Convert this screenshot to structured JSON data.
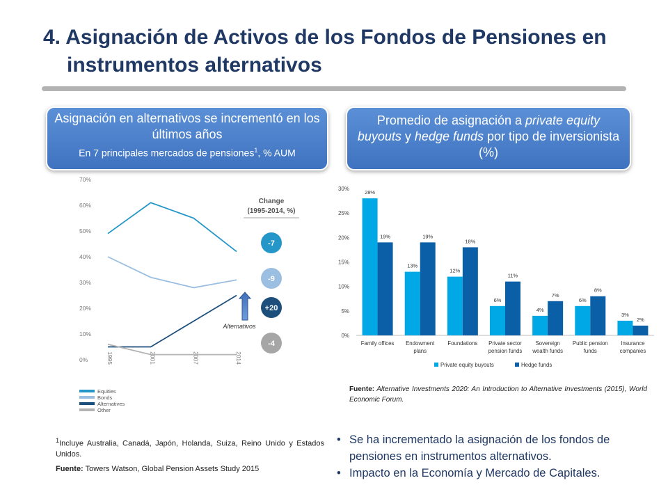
{
  "slide": {
    "title_line1": "4. Asignación de Activos de los Fondos de Pensiones en",
    "title_line2": "instrumentos alternativos"
  },
  "box_left": {
    "heading": "Asignación en alternativos se incrementó en los últimos años",
    "sub_text": "En 7 principales mercados de pensiones",
    "sub_sup": "1",
    "sub_suffix": ", % AUM"
  },
  "box_right": {
    "heading_part1": "Promedio de asignación a ",
    "heading_em1": "private equity buyouts",
    "heading_part2": " y ",
    "heading_em2": "hedge funds",
    "heading_part3": " por tipo de inversionista (%)"
  },
  "chart_data": [
    {
      "type": "line",
      "x": [
        "1995",
        "2001",
        "2007",
        "2014"
      ],
      "ylim": [
        0,
        70
      ],
      "ytick_labels": [
        "0%",
        "10%",
        "20%",
        "30%",
        "40%",
        "50%",
        "60%",
        "70%"
      ],
      "series": [
        {
          "name": "Equities",
          "values": [
            49,
            61,
            55,
            42
          ],
          "color": "#2596c8"
        },
        {
          "name": "Bonds",
          "values": [
            40,
            32,
            28,
            31
          ],
          "color": "#9bbfe0"
        },
        {
          "name": "Alternatives",
          "values": [
            5,
            5,
            15,
            25
          ],
          "color": "#1c4f7c"
        },
        {
          "name": "Other",
          "values": [
            6,
            2,
            2,
            2
          ],
          "color": "#b3b3b3"
        }
      ],
      "change_title_line1": "Change",
      "change_title_line2": "(1995-2014, %)",
      "change_badges": [
        {
          "label": "-7",
          "color": "#2596c8"
        },
        {
          "label": "-9",
          "color": "#9bbfe0"
        },
        {
          "label": "+20",
          "color": "#1c4f7c"
        },
        {
          "label": "-4",
          "color": "#a6a6a6"
        }
      ],
      "annotation": "Alternativos",
      "legend_position": "bottom-left",
      "grid": false
    },
    {
      "type": "bar",
      "categories": [
        [
          "Family offices"
        ],
        [
          "Endowment",
          "plans"
        ],
        [
          "Foundations"
        ],
        [
          "Private sector",
          "pension funds"
        ],
        [
          "Sovereign",
          "wealth funds"
        ],
        [
          "Public pension",
          "funds"
        ],
        [
          "Insurance",
          "companies"
        ]
      ],
      "series": [
        {
          "name": "Private equity buyouts",
          "values": [
            28,
            13,
            12,
            6,
            4,
            6,
            3
          ],
          "color": "#00a9e6"
        },
        {
          "name": "Hedge funds",
          "values": [
            19,
            19,
            18,
            11,
            7,
            8,
            2
          ],
          "color": "#0a5fa6"
        }
      ],
      "ylim": [
        0,
        30
      ],
      "ytick_labels": [
        "0%",
        "5%",
        "10%",
        "15%",
        "20%",
        "25%",
        "30%"
      ],
      "data_label_suffix": "%",
      "legend_position": "bottom",
      "grid": false
    }
  ],
  "source_right": {
    "label": "Fuente:",
    "text": " Alternative Investments 2020: An Introduction to Alternative Investments (2015), World Economic Forum."
  },
  "footnote_left": {
    "sup": "1",
    "text": "Incluye Australia, Canadá, Japón, Holanda, Suiza, Reino Unido y Estados Unidos.",
    "source_label": "Fuente:",
    "source_text": " Towers Watson, Global Pension Assets Study 2015"
  },
  "bullets": [
    "Se ha incrementado la asignación de los fondos de pensiones en instrumentos alternativos.",
    "Impacto en la Economía y Mercado de Capitales."
  ]
}
